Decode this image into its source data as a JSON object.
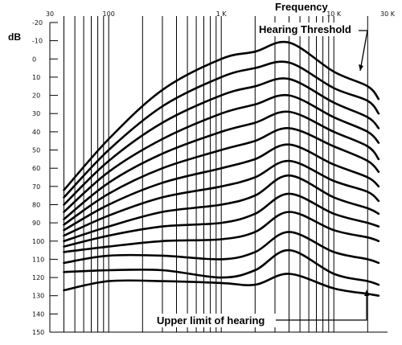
{
  "chart_data": {
    "type": "line",
    "xlabel": "Frequency",
    "ylabel": "dB",
    "x_scale": "log",
    "xlim": [
      30,
      30000
    ],
    "ylim": [
      -20,
      150
    ],
    "y_reversed": true,
    "grid": true,
    "x_tick_labels": [
      {
        "value": 30,
        "label": "30"
      },
      {
        "value": 100,
        "label": "100"
      },
      {
        "value": 1000,
        "label": "1 K"
      },
      {
        "value": 10000,
        "label": "10 K"
      },
      {
        "value": 30000,
        "label": "30 K"
      }
    ],
    "y_tick_labels": [
      "-20",
      "-10",
      "0",
      "10",
      "20",
      "30",
      "40",
      "50",
      "60",
      "70",
      "80",
      "90",
      "100",
      "110",
      "120",
      "130",
      "140",
      "150"
    ],
    "annotations": [
      "Hearing Threshold",
      "Upper limit of hearing"
    ],
    "x": [
      40,
      100,
      300,
      1000,
      2000,
      4000,
      10000,
      20000,
      25000
    ],
    "series": [
      {
        "values": [
          72,
          44,
          17,
          0,
          -4,
          -9,
          7,
          15,
          22
        ]
      },
      {
        "values": [
          76,
          50,
          26,
          10,
          5,
          2,
          16,
          23,
          30
        ]
      },
      {
        "values": [
          80,
          56,
          35,
          20,
          15,
          11,
          24,
          32,
          38
        ]
      },
      {
        "values": [
          84,
          62,
          44,
          30,
          25,
          20,
          32,
          40,
          46
        ]
      },
      {
        "values": [
          88,
          68,
          52,
          40,
          35,
          29,
          40,
          48,
          55
        ]
      },
      {
        "values": [
          91,
          74,
          60,
          50,
          45,
          38,
          48,
          56,
          62
        ]
      },
      {
        "values": [
          94,
          80,
          68,
          60,
          55,
          47,
          58,
          65,
          70
        ]
      },
      {
        "values": [
          97,
          86,
          76,
          70,
          65,
          56,
          67,
          73,
          78
        ]
      },
      {
        "values": [
          100,
          92,
          84,
          80,
          75,
          64,
          76,
          82,
          85
        ]
      },
      {
        "values": [
          103,
          97,
          92,
          90,
          85,
          74,
          85,
          90,
          92
        ]
      },
      {
        "values": [
          106,
          103,
          100,
          99,
          95,
          84,
          94,
          98,
          100
        ]
      },
      {
        "values": [
          112,
          108,
          108,
          110,
          106,
          95,
          106,
          110,
          112
        ]
      },
      {
        "values": [
          117,
          116,
          116,
          120,
          116,
          105,
          118,
          122,
          124
        ]
      },
      {
        "values": [
          127,
          122,
          122,
          123,
          124,
          118,
          126,
          129,
          130
        ]
      }
    ]
  }
}
